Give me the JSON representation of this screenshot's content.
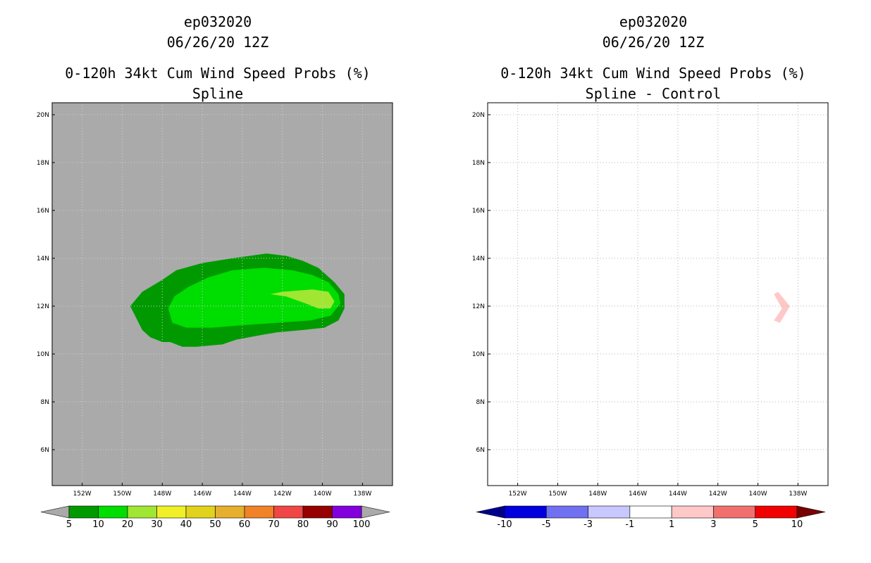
{
  "chart_data": [
    {
      "type": "heatmap",
      "storm_id": "ep032020",
      "datetime": "06/26/20 12Z",
      "title": "0-120h 34kt Cum Wind Speed Probs (%)",
      "subtitle": "Spline",
      "xlabel": "",
      "ylabel": "",
      "xlim": [
        -153.5,
        -136.5
      ],
      "ylim": [
        4.5,
        20.5
      ],
      "xticks": [
        -152,
        -150,
        -148,
        -146,
        -144,
        -142,
        -140,
        -138
      ],
      "xtick_labels": [
        "152W",
        "150W",
        "148W",
        "146W",
        "144W",
        "142W",
        "140W",
        "138W"
      ],
      "yticks": [
        6,
        8,
        10,
        12,
        14,
        16,
        18,
        20
      ],
      "ytick_labels": [
        "6N",
        "8N",
        "10N",
        "12N",
        "14N",
        "16N",
        "18N",
        "20N"
      ],
      "grid": true,
      "background": "#aaaaaa",
      "contours": [
        {
          "level": "5-10",
          "color": "#009a00",
          "polygon": [
            [
              -149.6,
              12.0
            ],
            [
              -149.0,
              12.6
            ],
            [
              -148.0,
              13.1
            ],
            [
              -147.3,
              13.5
            ],
            [
              -146.0,
              13.8
            ],
            [
              -144.5,
              14.0
            ],
            [
              -142.8,
              14.2
            ],
            [
              -141.8,
              14.1
            ],
            [
              -141.0,
              13.9
            ],
            [
              -140.2,
              13.6
            ],
            [
              -139.4,
              13.0
            ],
            [
              -138.9,
              12.5
            ],
            [
              -138.9,
              11.9
            ],
            [
              -139.2,
              11.4
            ],
            [
              -139.9,
              11.1
            ],
            [
              -141.0,
              11.0
            ],
            [
              -142.3,
              10.9
            ],
            [
              -143.0,
              10.8
            ],
            [
              -144.3,
              10.6
            ],
            [
              -145.0,
              10.4
            ],
            [
              -146.3,
              10.3
            ],
            [
              -147.0,
              10.3
            ],
            [
              -147.6,
              10.5
            ],
            [
              -148.0,
              10.5
            ],
            [
              -148.6,
              10.7
            ],
            [
              -149.0,
              11.0
            ],
            [
              -149.6,
              12.0
            ]
          ]
        },
        {
          "level": "10-20",
          "color": "#00dd00",
          "polygon": [
            [
              -147.7,
              11.9
            ],
            [
              -147.4,
              12.4
            ],
            [
              -146.7,
              12.8
            ],
            [
              -145.7,
              13.2
            ],
            [
              -144.5,
              13.5
            ],
            [
              -142.9,
              13.6
            ],
            [
              -141.5,
              13.5
            ],
            [
              -140.5,
              13.3
            ],
            [
              -139.7,
              13.0
            ],
            [
              -139.2,
              12.5
            ],
            [
              -139.1,
              12.1
            ],
            [
              -139.6,
              11.6
            ],
            [
              -140.6,
              11.4
            ],
            [
              -142.3,
              11.3
            ],
            [
              -144.1,
              11.2
            ],
            [
              -145.5,
              11.1
            ],
            [
              -146.8,
              11.1
            ],
            [
              -147.5,
              11.3
            ],
            [
              -147.7,
              11.9
            ]
          ]
        },
        {
          "level": "20-30",
          "color": "#a0e632",
          "polygon": [
            [
              -142.6,
              12.5
            ],
            [
              -142.0,
              12.6
            ],
            [
              -140.5,
              12.7
            ],
            [
              -139.7,
              12.6
            ],
            [
              -139.4,
              12.2
            ],
            [
              -139.6,
              11.9
            ],
            [
              -140.2,
              11.9
            ],
            [
              -140.8,
              12.1
            ],
            [
              -141.8,
              12.4
            ],
            [
              -142.6,
              12.5
            ]
          ]
        }
      ],
      "colorbar": {
        "levels": [
          "5",
          "10",
          "20",
          "30",
          "40",
          "50",
          "60",
          "70",
          "80",
          "90",
          "100"
        ],
        "colors": [
          "#009a00",
          "#00dd00",
          "#a0e632",
          "#f0f028",
          "#e1d21e",
          "#e6af2d",
          "#f08228",
          "#f04646",
          "#960000",
          "#8200dc"
        ],
        "end_low": "#aaaaaa",
        "end_high": "#aaaaaa"
      }
    },
    {
      "type": "heatmap",
      "storm_id": "ep032020",
      "datetime": "06/26/20 12Z",
      "title": "0-120h 34kt Cum Wind Speed Probs (%)",
      "subtitle": "Spline - Control",
      "xlabel": "",
      "ylabel": "",
      "xlim": [
        -153.5,
        -136.5
      ],
      "ylim": [
        4.5,
        20.5
      ],
      "xticks": [
        -152,
        -150,
        -148,
        -146,
        -144,
        -142,
        -140,
        -138
      ],
      "xtick_labels": [
        "152W",
        "150W",
        "148W",
        "146W",
        "144W",
        "142W",
        "140W",
        "138W"
      ],
      "yticks": [
        6,
        8,
        10,
        12,
        14,
        16,
        18,
        20
      ],
      "ytick_labels": [
        "6N",
        "8N",
        "10N",
        "12N",
        "14N",
        "16N",
        "18N",
        "20N"
      ],
      "grid": true,
      "background": "#ffffff",
      "contours": [
        {
          "level": "1-3",
          "color": "#ffc8c8",
          "polygon": [
            [
              -139.0,
              12.6
            ],
            [
              -138.4,
              12.0
            ],
            [
              -138.9,
              11.3
            ],
            [
              -139.2,
              11.4
            ],
            [
              -138.8,
              11.9
            ],
            [
              -139.2,
              12.5
            ],
            [
              -139.0,
              12.6
            ]
          ]
        }
      ],
      "colorbar": {
        "levels": [
          "-10",
          "-5",
          "-3",
          "-1",
          "1",
          "3",
          "5",
          "10"
        ],
        "colors": [
          "#0000dc",
          "#7070f0",
          "#c8c8ff",
          "#ffffff",
          "#ffc8c8",
          "#f07070",
          "#f00000"
        ],
        "end_low": "#00008c",
        "end_high": "#780000"
      }
    }
  ]
}
